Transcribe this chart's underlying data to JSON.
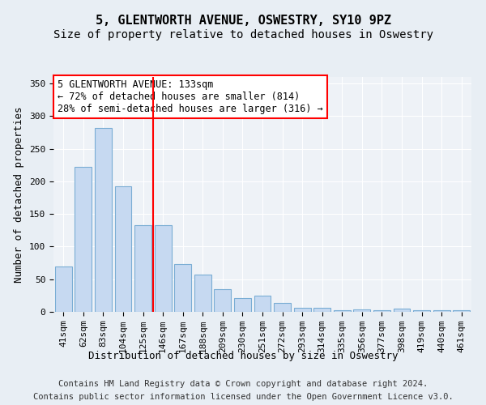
{
  "title": "5, GLENTWORTH AVENUE, OSWESTRY, SY10 9PZ",
  "subtitle": "Size of property relative to detached houses in Oswestry",
  "xlabel": "Distribution of detached houses by size in Oswestry",
  "ylabel": "Number of detached properties",
  "categories": [
    "41sqm",
    "62sqm",
    "83sqm",
    "104sqm",
    "125sqm",
    "146sqm",
    "167sqm",
    "188sqm",
    "209sqm",
    "230sqm",
    "251sqm",
    "272sqm",
    "293sqm",
    "314sqm",
    "335sqm",
    "356sqm",
    "377sqm",
    "398sqm",
    "419sqm",
    "440sqm",
    "461sqm"
  ],
  "values": [
    70,
    222,
    282,
    192,
    133,
    133,
    73,
    57,
    35,
    21,
    25,
    14,
    6,
    6,
    3,
    4,
    3,
    5,
    3,
    2,
    2
  ],
  "bar_color": "#c6d9f1",
  "bar_edge_color": "#7aadd4",
  "vline_index": 4,
  "vline_color": "red",
  "annotation_text": "5 GLENTWORTH AVENUE: 133sqm\n← 72% of detached houses are smaller (814)\n28% of semi-detached houses are larger (316) →",
  "annotation_box_color": "white",
  "annotation_box_edge_color": "red",
  "ylim": [
    0,
    360
  ],
  "yticks": [
    0,
    50,
    100,
    150,
    200,
    250,
    300,
    350
  ],
  "bg_color": "#e8eef4",
  "plot_bg_color": "#eef2f7",
  "footer_line1": "Contains HM Land Registry data © Crown copyright and database right 2024.",
  "footer_line2": "Contains public sector information licensed under the Open Government Licence v3.0.",
  "title_fontsize": 11,
  "subtitle_fontsize": 10,
  "axis_label_fontsize": 9,
  "tick_fontsize": 8,
  "annotation_fontsize": 8.5,
  "footer_fontsize": 7.5
}
